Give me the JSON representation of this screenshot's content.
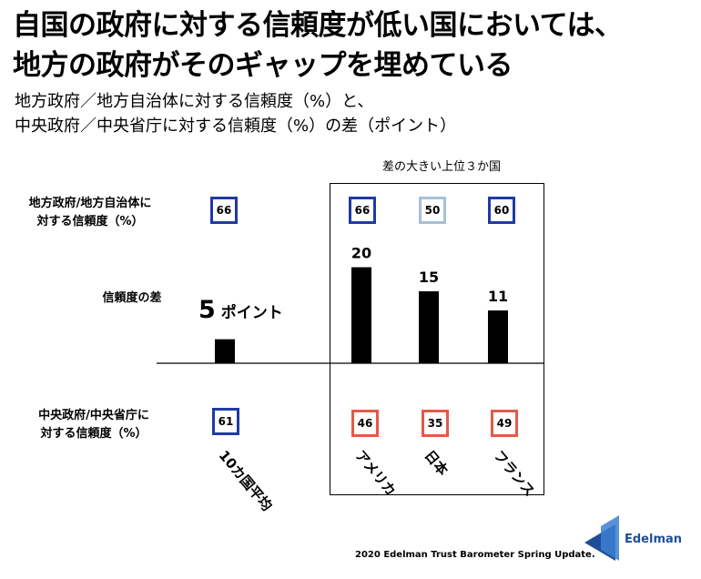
{
  "title_line1": "自国の政府に対する信頼度が低い国においては、",
  "title_line2": "地方の政府がそのギャップを埋めている",
  "subtitle_line1": "地方政府／地方自治体に対する信頼度（%）と、",
  "subtitle_line2": "中央政府／中央省庁に対する信頼度（%）の差（ポイント）",
  "box_label": "差の大きい上位３か国",
  "row_labels": {
    "local": [
      "地方政府/地方自治体に",
      "対する信頼度（%）"
    ],
    "gap": "信頼度の差",
    "central": [
      "中央政府/中央省庁に",
      "対する信頼度（%）"
    ]
  },
  "average_gap_number": "5",
  "average_gap_unit": "ポイント",
  "source": "2020 Edelman Trust Barometer Spring Update.",
  "brand": "Edelman",
  "colors": {
    "bar": "#000000",
    "badge_blue": "#1f3aa6",
    "badge_light": "#a7c0d6",
    "badge_red": "#e45a47",
    "brand": "#1f4e99"
  },
  "chart_data": {
    "type": "bar",
    "categories": [
      "10カ国平均",
      "アメリカ",
      "日本",
      "フランス"
    ],
    "series": [
      {
        "values": [
          5,
          20,
          15,
          11
        ]
      }
    ],
    "data_labels": [
      "",
      "20",
      "15",
      "11"
    ],
    "local_trust": [
      "66",
      "66",
      "50",
      "60"
    ],
    "central_trust": [
      "61",
      "46",
      "35",
      "49"
    ],
    "ylim": [
      0,
      22
    ]
  }
}
